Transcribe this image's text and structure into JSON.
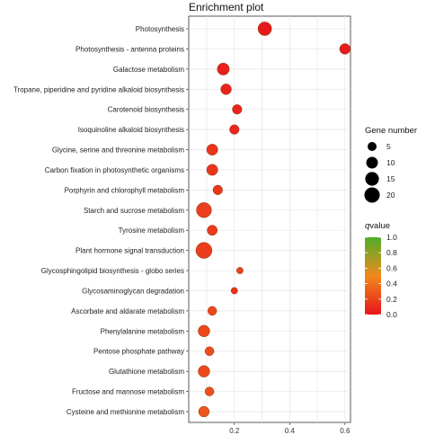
{
  "chart_data": {
    "type": "scatter",
    "title": "Enrichment plot",
    "xlim": [
      0.035,
      0.62
    ],
    "xticks": [
      "0.2",
      "0.4",
      "0.6"
    ],
    "xtick_values": [
      0.2,
      0.4,
      0.6
    ],
    "grid": true,
    "legend_position": "right",
    "categories": [
      "Photosynthesis",
      "Photosynthesis - antenna proteins",
      "Galactose metabolism",
      "Tropane, piperidine and pyridine alkaloid biosynthesis",
      "Carotenoid biosynthesis",
      "Isoquinoline alkaloid biosynthesis",
      "Glycine, serine and threonine metabolism",
      "Carbon fixation in photosynthetic organisms",
      "Porphyrin and chlorophyll metabolism",
      "Starch and sucrose metabolism",
      "Tyrosine metabolism",
      "Plant hormone signal transduction",
      "Glycosphingolipid biosynthesis - globo series",
      "Glycosaminoglycan degradation",
      "Ascorbate and aldarate metabolism",
      "Phenylalanine metabolism",
      "Pentose phosphate pathway",
      "Glutathione metabolism",
      "Fructose and mannose metabolism",
      "Cysteine and methionine metabolism"
    ],
    "points": [
      {
        "x": 0.31,
        "gene_number": 15,
        "qvalue": 0.02
      },
      {
        "x": 0.6,
        "gene_number": 8,
        "qvalue": 0.03
      },
      {
        "x": 0.16,
        "gene_number": 11,
        "qvalue": 0.05
      },
      {
        "x": 0.17,
        "gene_number": 8,
        "qvalue": 0.06
      },
      {
        "x": 0.21,
        "gene_number": 6,
        "qvalue": 0.07
      },
      {
        "x": 0.2,
        "gene_number": 6,
        "qvalue": 0.08
      },
      {
        "x": 0.12,
        "gene_number": 9,
        "qvalue": 0.14
      },
      {
        "x": 0.12,
        "gene_number": 9,
        "qvalue": 0.15
      },
      {
        "x": 0.14,
        "gene_number": 6,
        "qvalue": 0.15
      },
      {
        "x": 0.09,
        "gene_number": 19,
        "qvalue": 0.18
      },
      {
        "x": 0.12,
        "gene_number": 7,
        "qvalue": 0.16
      },
      {
        "x": 0.09,
        "gene_number": 22,
        "qvalue": 0.17
      },
      {
        "x": 0.22,
        "gene_number": 2,
        "qvalue": 0.2
      },
      {
        "x": 0.2,
        "gene_number": 2,
        "qvalue": 0.12
      },
      {
        "x": 0.12,
        "gene_number": 5,
        "qvalue": 0.22
      },
      {
        "x": 0.09,
        "gene_number": 10,
        "qvalue": 0.22
      },
      {
        "x": 0.11,
        "gene_number": 5,
        "qvalue": 0.24
      },
      {
        "x": 0.09,
        "gene_number": 10,
        "qvalue": 0.22
      },
      {
        "x": 0.11,
        "gene_number": 5,
        "qvalue": 0.26
      },
      {
        "x": 0.09,
        "gene_number": 8,
        "qvalue": 0.28
      }
    ],
    "size_legend": {
      "title": "Gene number",
      "values": [
        5,
        10,
        15,
        20
      ],
      "labels": [
        "5",
        "10",
        "15",
        "20"
      ]
    },
    "color_legend": {
      "title_prefix": "q",
      "title_suffix": "value",
      "ticks": [
        1.0,
        0.8,
        0.6,
        0.4,
        0.2,
        0.0
      ],
      "tick_labels": [
        "1.0",
        "0.8",
        "0.6",
        "0.4",
        "0.2",
        "0.0"
      ],
      "range": [
        0.0,
        1.0
      ],
      "colors": [
        "#e8141c",
        "#f08a1c",
        "#4fae2a"
      ]
    }
  }
}
